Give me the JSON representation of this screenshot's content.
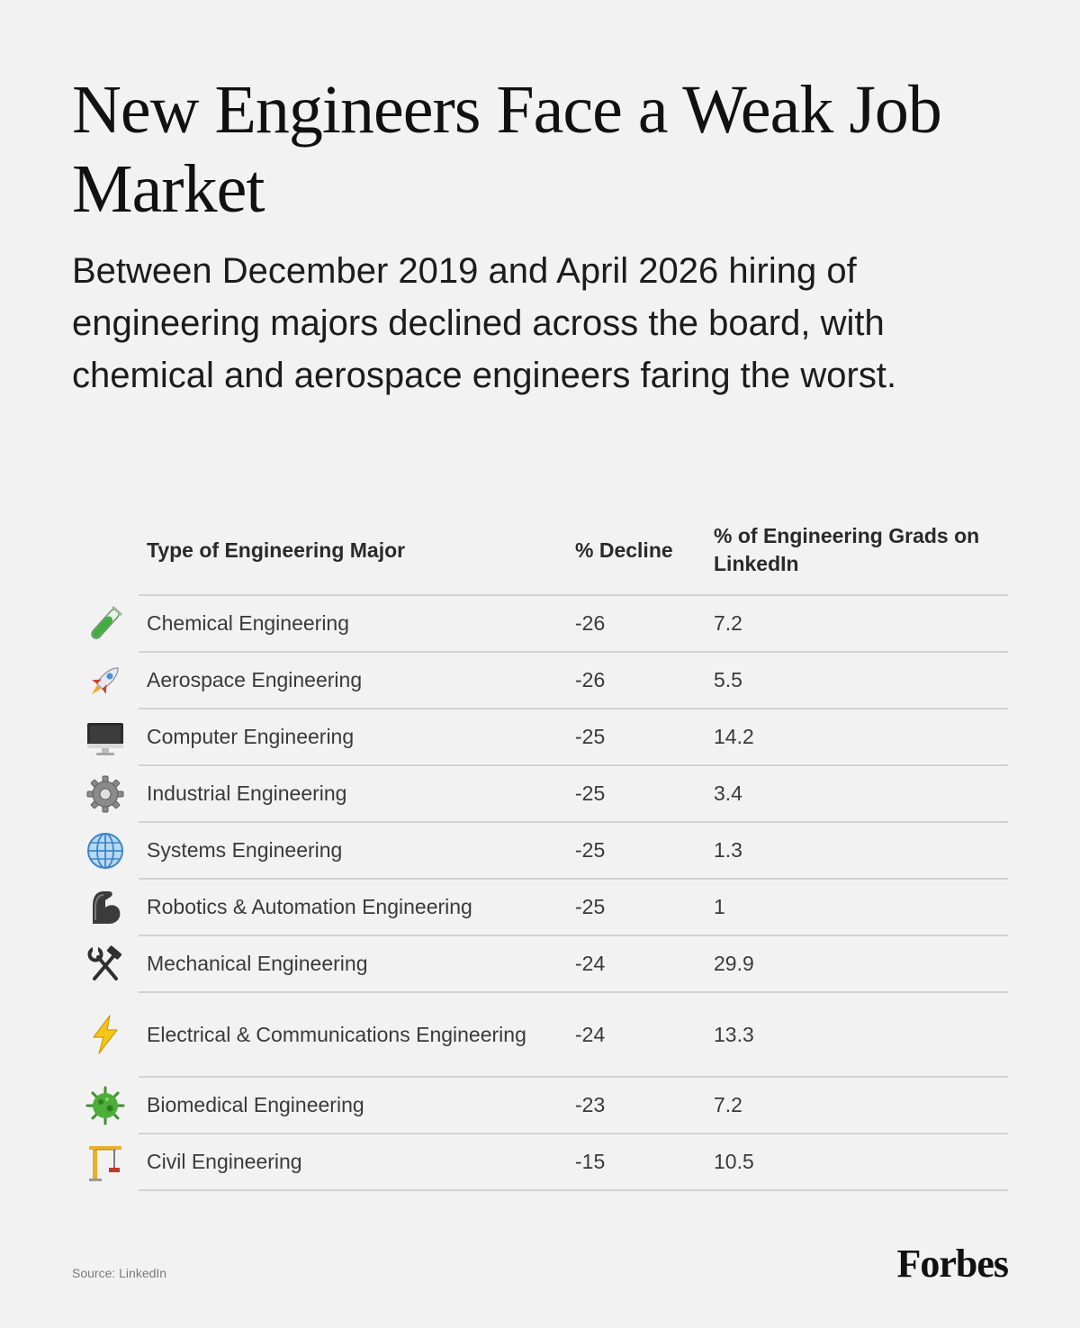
{
  "header": {
    "title": "New Engineers Face a Weak Job Market",
    "subtitle": "Between December 2019 and April 2026 hiring of engineering majors declined across the board, with chemical and aerospace engineers faring the worst."
  },
  "chart_data": {
    "type": "table",
    "title": "New Engineers Face a Weak Job Market",
    "columns": [
      "Type of Engineering Major",
      "% Decline",
      "% of Engineering Grads on LinkedIn"
    ],
    "rows": [
      {
        "icon": "test-tube-icon",
        "major": "Chemical Engineering",
        "decline": "-26",
        "share": "7.2"
      },
      {
        "icon": "rocket-icon",
        "major": "Aerospace Engineering",
        "decline": "-26",
        "share": "5.5"
      },
      {
        "icon": "computer-monitor-icon",
        "major": "Computer Engineering",
        "decline": "-25",
        "share": "14.2"
      },
      {
        "icon": "gear-icon",
        "major": "Industrial Engineering",
        "decline": "-25",
        "share": "3.4"
      },
      {
        "icon": "globe-icon",
        "major": "Systems Engineering",
        "decline": "-25",
        "share": "1.3"
      },
      {
        "icon": "mechanical-arm-icon",
        "major": "Robotics & Automation Engineering",
        "decline": "-25",
        "share": "1"
      },
      {
        "icon": "hammer-wrench-icon",
        "major": "Mechanical Engineering",
        "decline": "-24",
        "share": "29.9"
      },
      {
        "icon": "lightning-icon",
        "major": "Electrical & Communications Engineering",
        "decline": "-24",
        "share": "13.3"
      },
      {
        "icon": "microbe-icon",
        "major": "Biomedical Engineering",
        "decline": "-23",
        "share": "7.2"
      },
      {
        "icon": "construction-crane-icon",
        "major": "Civil Engineering",
        "decline": "-15",
        "share": "10.5"
      }
    ]
  },
  "colors": {
    "background": "#f2f2f2",
    "text": "#1a1a1a",
    "rule": "#d2d2d2"
  },
  "footer": {
    "source": "Source: LinkedIn",
    "brand": "Forbes"
  }
}
